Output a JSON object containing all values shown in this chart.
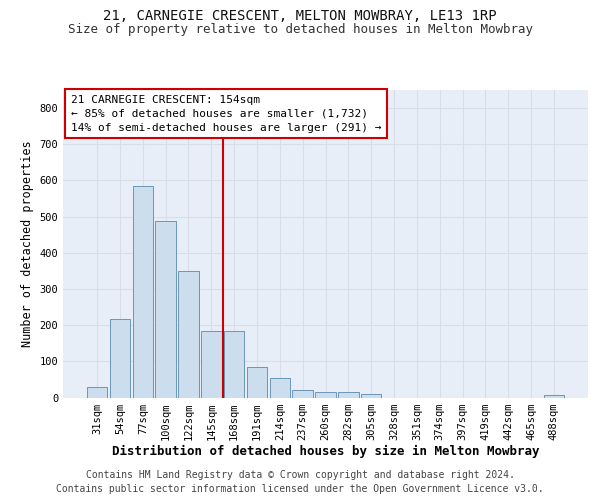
{
  "title1": "21, CARNEGIE CRESCENT, MELTON MOWBRAY, LE13 1RP",
  "title2": "Size of property relative to detached houses in Melton Mowbray",
  "xlabel": "Distribution of detached houses by size in Melton Mowbray",
  "ylabel": "Number of detached properties",
  "categories": [
    "31sqm",
    "54sqm",
    "77sqm",
    "100sqm",
    "122sqm",
    "145sqm",
    "168sqm",
    "191sqm",
    "214sqm",
    "237sqm",
    "260sqm",
    "282sqm",
    "305sqm",
    "328sqm",
    "351sqm",
    "374sqm",
    "397sqm",
    "419sqm",
    "442sqm",
    "465sqm",
    "488sqm"
  ],
  "values": [
    30,
    218,
    585,
    488,
    350,
    185,
    185,
    85,
    53,
    20,
    15,
    15,
    10,
    0,
    0,
    0,
    0,
    0,
    0,
    0,
    8
  ],
  "bar_color": "#ccdded",
  "bar_edge_color": "#5a8ab0",
  "vline_index": 6,
  "vline_color": "#cc0000",
  "annotation_line1": "21 CARNEGIE CRESCENT: 154sqm",
  "annotation_line2": "← 85% of detached houses are smaller (1,732)",
  "annotation_line3": "14% of semi-detached houses are larger (291) →",
  "ylim": [
    0,
    850
  ],
  "yticks": [
    0,
    100,
    200,
    300,
    400,
    500,
    600,
    700,
    800
  ],
  "footer1": "Contains HM Land Registry data © Crown copyright and database right 2024.",
  "footer2": "Contains public sector information licensed under the Open Government Licence v3.0.",
  "bg_color": "#e8eef8",
  "grid_color": "#d8dde8",
  "title1_fontsize": 10,
  "title2_fontsize": 9,
  "ylabel_fontsize": 8.5,
  "xlabel_fontsize": 9,
  "tick_fontsize": 7.5,
  "annot_fontsize": 8,
  "footer_fontsize": 7
}
